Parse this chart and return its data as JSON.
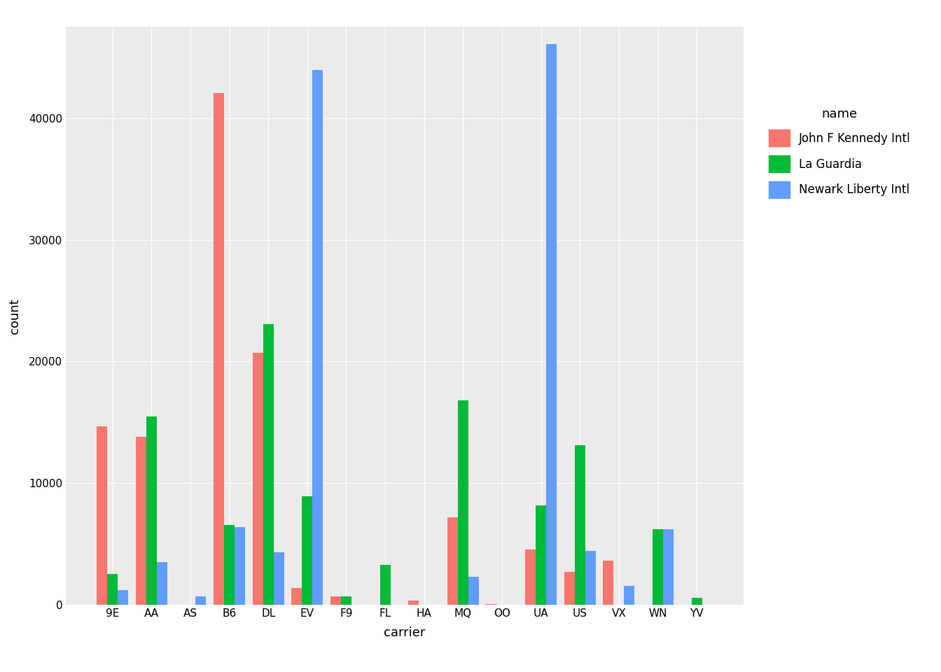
{
  "carriers": [
    "9E",
    "AA",
    "AS",
    "B6",
    "DL",
    "EV",
    "F9",
    "FL",
    "HA",
    "MQ",
    "OO",
    "UA",
    "US",
    "VX",
    "WN",
    "YV"
  ],
  "airports": [
    "John F Kennedy Intl",
    "La Guardia",
    "Newark Liberty Intl"
  ],
  "colors": [
    "#F8766D",
    "#00BA38",
    "#619CFF"
  ],
  "data": {
    "John F Kennedy Intl": [
      14651,
      13783,
      0,
      42076,
      20701,
      1408,
      685,
      0,
      342,
      7193,
      32,
      4534,
      2723,
      3596,
      0,
      0
    ],
    "La Guardia": [
      2541,
      15459,
      0,
      6557,
      23067,
      8904,
      685,
      3260,
      0,
      16797,
      6,
      8197,
      13136,
      0,
      6188,
      601
    ],
    "Newark Liberty Intl": [
      1212,
      3487,
      714,
      6400,
      4342,
      43939,
      0,
      0,
      0,
      2276,
      0,
      46087,
      4405,
      1566,
      6188,
      0
    ]
  },
  "xlabel": "carrier",
  "ylabel": "count",
  "legend_title": "name",
  "ylim": [
    0,
    47500
  ],
  "yticks": [
    0,
    10000,
    20000,
    30000,
    40000
  ],
  "ytick_labels": [
    "0",
    "10000",
    "20000",
    "30000",
    "40000"
  ],
  "background_color": "#EBEBEB",
  "grid_color": "white",
  "bar_width": 0.27,
  "tick_fontsize": 11,
  "label_fontsize": 13,
  "legend_fontsize": 12,
  "legend_title_fontsize": 13
}
